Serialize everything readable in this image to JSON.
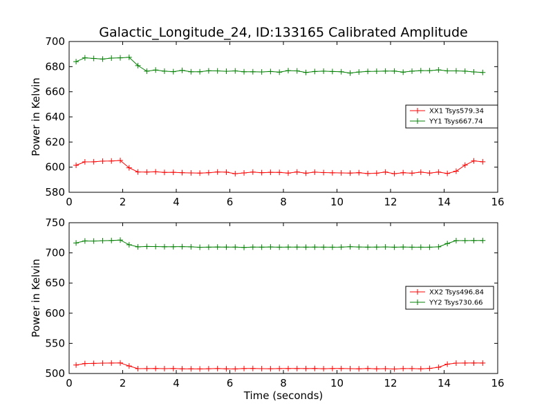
{
  "chart_data": [
    {
      "type": "line",
      "title": "Galactic_Longitude_24, ID:133165 Calibrated Amplitude",
      "xlabel": "",
      "ylabel": "Power in Kelvin",
      "xlim": [
        0,
        16
      ],
      "ylim": [
        580,
        700
      ],
      "xticks": [
        0,
        2,
        4,
        6,
        8,
        10,
        12,
        14,
        16
      ],
      "yticks": [
        580,
        600,
        620,
        640,
        660,
        680,
        700
      ],
      "grid": false,
      "legend_position": "center-right",
      "x": [
        0.26,
        0.59,
        0.92,
        1.25,
        1.58,
        1.91,
        2.24,
        2.57,
        2.9,
        3.23,
        3.56,
        3.89,
        4.22,
        4.55,
        4.88,
        5.21,
        5.54,
        5.87,
        6.2,
        6.53,
        6.86,
        7.19,
        7.52,
        7.85,
        8.18,
        8.51,
        8.84,
        9.17,
        9.5,
        9.83,
        10.16,
        10.49,
        10.82,
        11.15,
        11.48,
        11.81,
        12.14,
        12.47,
        12.8,
        13.13,
        13.46,
        13.79,
        14.12,
        14.45,
        14.78,
        15.11,
        15.44
      ],
      "series": [
        {
          "name": "XX1 Tsys579.34",
          "color": "#ff0000",
          "values": [
            601.5,
            604.2,
            604.3,
            604.8,
            604.9,
            605.3,
            599.5,
            596.2,
            596.1,
            596.3,
            595.8,
            595.9,
            595.6,
            595.4,
            595.3,
            595.6,
            596.2,
            596.0,
            594.8,
            595.4,
            596.1,
            595.6,
            595.9,
            595.8,
            595.3,
            596.2,
            595.2,
            596.0,
            595.7,
            595.5,
            595.4,
            595.3,
            595.6,
            594.9,
            595.2,
            596.1,
            594.8,
            595.6,
            595.2,
            596.0,
            595.3,
            596.1,
            595.0,
            596.8,
            601.6,
            605.0,
            604.3
          ]
        },
        {
          "name": "YY1 Tsys667.74",
          "color": "#008000",
          "values": [
            684.0,
            687.0,
            686.5,
            686.0,
            686.8,
            687.0,
            687.4,
            680.8,
            676.4,
            677.3,
            676.4,
            676.0,
            677.0,
            675.9,
            675.9,
            676.7,
            676.6,
            676.3,
            676.6,
            675.9,
            675.9,
            675.8,
            676.1,
            675.6,
            676.8,
            676.6,
            675.4,
            676.1,
            676.4,
            676.1,
            675.9,
            674.9,
            675.7,
            676.2,
            676.3,
            676.5,
            676.5,
            675.6,
            676.4,
            676.8,
            676.8,
            677.4,
            676.6,
            676.6,
            676.4,
            675.8,
            675.4
          ]
        }
      ]
    },
    {
      "type": "line",
      "title": "",
      "xlabel": "Time (seconds)",
      "ylabel": "Power in Kelvin",
      "xlim": [
        0,
        16
      ],
      "ylim": [
        500,
        750
      ],
      "xticks": [
        0,
        2,
        4,
        6,
        8,
        10,
        12,
        14,
        16
      ],
      "yticks": [
        500,
        550,
        600,
        650,
        700,
        750
      ],
      "grid": false,
      "legend_position": "center-right",
      "x": [
        0.26,
        0.59,
        0.92,
        1.25,
        1.58,
        1.91,
        2.24,
        2.57,
        2.9,
        3.23,
        3.56,
        3.89,
        4.22,
        4.55,
        4.88,
        5.21,
        5.54,
        5.87,
        6.2,
        6.53,
        6.86,
        7.19,
        7.52,
        7.85,
        8.18,
        8.51,
        8.84,
        9.17,
        9.5,
        9.83,
        10.16,
        10.49,
        10.82,
        11.15,
        11.48,
        11.81,
        12.14,
        12.47,
        12.8,
        13.13,
        13.46,
        13.79,
        14.12,
        14.45,
        14.78,
        15.11,
        15.44
      ],
      "series": [
        {
          "name": "XX2 Tsys496.84",
          "color": "#ff0000",
          "values": [
            514.0,
            516.5,
            516.8,
            517.2,
            517.3,
            517.5,
            512.5,
            508.0,
            508.1,
            508.3,
            508.0,
            508.2,
            507.8,
            507.7,
            507.6,
            507.9,
            508.2,
            507.8,
            507.6,
            508.2,
            508.3,
            508.0,
            507.9,
            508.1,
            508.2,
            508.2,
            508.1,
            508.3,
            507.9,
            508.2,
            508.2,
            508.0,
            507.8,
            508.3,
            507.8,
            508.0,
            507.5,
            508.1,
            508.1,
            507.8,
            508.5,
            510.3,
            515.5,
            517.2,
            517.3,
            517.4,
            517.3
          ]
        },
        {
          "name": "YY2 Tsys730.66",
          "color": "#008000",
          "values": [
            716.5,
            719.8,
            719.6,
            720.2,
            720.4,
            721.2,
            713.5,
            710.0,
            710.6,
            710.4,
            710.2,
            710.2,
            710.3,
            710.0,
            709.3,
            709.5,
            709.7,
            709.6,
            709.6,
            709.0,
            709.6,
            709.5,
            709.8,
            709.4,
            709.6,
            709.6,
            709.5,
            709.6,
            709.5,
            709.4,
            709.6,
            710.2,
            709.7,
            709.5,
            709.6,
            709.9,
            709.4,
            709.7,
            709.4,
            709.4,
            709.4,
            710.0,
            715.5,
            720.3,
            720.3,
            720.5,
            720.4
          ]
        }
      ]
    }
  ]
}
